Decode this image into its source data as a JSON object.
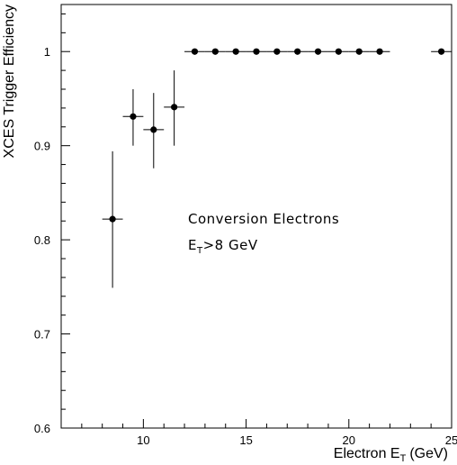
{
  "chart_data": {
    "type": "scatter",
    "title": "",
    "xlabel": "Electron E",
    "xlabel_sub": "T",
    "xlabel_unit": "(GeV)",
    "ylabel": "XCES Trigger Efficiency",
    "xlim": [
      6,
      25
    ],
    "ylim": [
      0.6,
      1.05
    ],
    "x_ticks": [
      10,
      15,
      20,
      25
    ],
    "y_ticks": [
      0.6,
      0.7,
      0.8,
      0.9,
      1
    ],
    "y_tick_labels": [
      "0.6",
      "0.7",
      "0.8",
      "0.9",
      "1"
    ],
    "grid": false,
    "legend": "none",
    "annotations": [
      {
        "text": "Conversion Electrons"
      },
      {
        "text": "E",
        "sub": "T",
        "rest": ">8 GeV"
      }
    ],
    "series": [
      {
        "x": [
          8.5,
          9.5,
          10.5,
          11.5,
          12.5,
          13.5,
          14.5,
          15.5,
          16.5,
          17.5,
          18.5,
          19.5,
          20.5,
          21.5,
          24.5
        ],
        "y": [
          0.822,
          0.931,
          0.917,
          0.941,
          1,
          1,
          1,
          1,
          1,
          1,
          1,
          1,
          1,
          1,
          1
        ],
        "xerr": [
          0.5,
          0.5,
          0.5,
          0.5,
          0.5,
          0.5,
          0.5,
          0.5,
          0.5,
          0.5,
          0.5,
          0.5,
          0.5,
          0.5,
          0.5
        ],
        "yerr_low": [
          0.073,
          0.031,
          0.041,
          0.041,
          0,
          0,
          0,
          0,
          0,
          0,
          0,
          0,
          0,
          0,
          0
        ],
        "yerr_high": [
          0.072,
          0.029,
          0.039,
          0.039,
          0,
          0,
          0,
          0,
          0,
          0,
          0,
          0,
          0,
          0,
          0
        ]
      }
    ]
  },
  "colors": {
    "ink": "#000000",
    "background": "#ffffff"
  }
}
